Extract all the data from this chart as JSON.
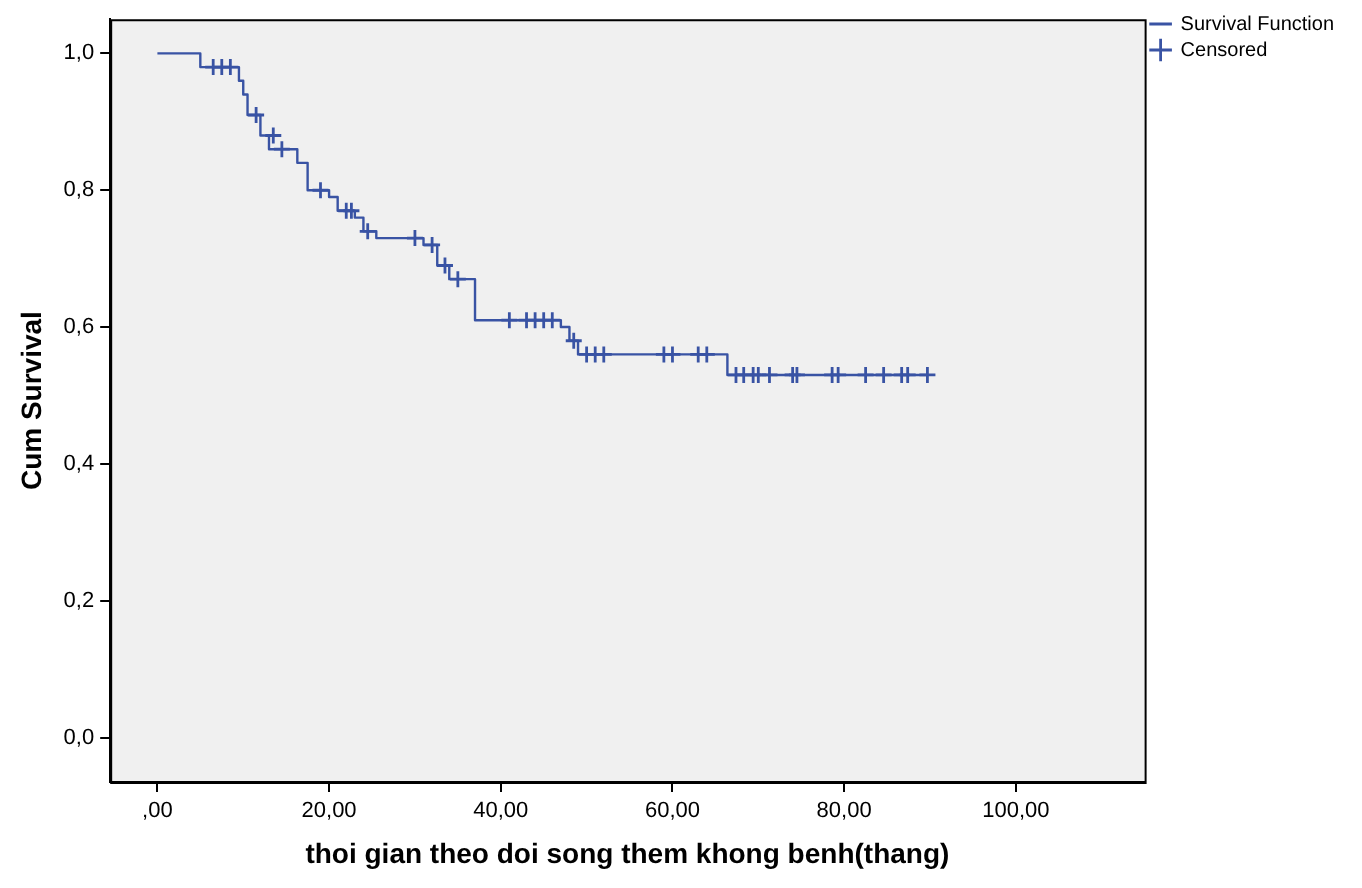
{
  "chart_data": {
    "type": "step",
    "xlabel": "thoi gian theo doi song them khong benh(thang)",
    "ylabel": "Cum Survival",
    "xlim": [
      -5.5,
      115
    ],
    "ylim": [
      -0.065,
      1.05
    ],
    "xticks": [
      {
        "value": 0,
        "label": ",00"
      },
      {
        "value": 20,
        "label": "20,00"
      },
      {
        "value": 40,
        "label": "40,00"
      },
      {
        "value": 60,
        "label": "60,00"
      },
      {
        "value": 80,
        "label": "80,00"
      },
      {
        "value": 100,
        "label": "100,00"
      }
    ],
    "yticks": [
      {
        "value": 0,
        "label": "0,0"
      },
      {
        "value": 0.2,
        "label": "0,2"
      },
      {
        "value": 0.4,
        "label": "0,4"
      },
      {
        "value": 0.6,
        "label": "0,6"
      },
      {
        "value": 0.8,
        "label": "0,8"
      },
      {
        "value": 1,
        "label": "1,0"
      }
    ],
    "grid": false,
    "legend": "top right",
    "series": [
      {
        "name": "Survival Function",
        "color": "#3953a4",
        "x": [
          0,
          5,
          9.5,
          10,
          10.5,
          12,
          13,
          16.3,
          17.5,
          20,
          21,
          23,
          24,
          25.5,
          31,
          32.6,
          34,
          37,
          47,
          48,
          49,
          66.4,
          89.7
        ],
        "values": [
          1,
          0.98,
          0.96,
          0.94,
          0.91,
          0.88,
          0.86,
          0.84,
          0.8,
          0.79,
          0.77,
          0.76,
          0.74,
          0.73,
          0.72,
          0.69,
          0.67,
          0.61,
          0.6,
          0.58,
          0.56,
          0.53,
          0.53
        ]
      },
      {
        "name": "Censored",
        "type": "scatter",
        "marker": "cross",
        "color": "#3953a4",
        "x": [
          6.5,
          7.5,
          8.5,
          11.5,
          13.5,
          14.5,
          19,
          22,
          22.6,
          24.5,
          30,
          32,
          33.5,
          35,
          41,
          43,
          44,
          45,
          46,
          48.5,
          50,
          51,
          52,
          59,
          60,
          63,
          64,
          67.4,
          68.3,
          69.4,
          70,
          71.3,
          74,
          74.5,
          78.6,
          79.3,
          82.5,
          84.6,
          86.7,
          87.4,
          89.7
        ],
        "values": [
          0.98,
          0.98,
          0.98,
          0.91,
          0.88,
          0.86,
          0.8,
          0.77,
          0.77,
          0.74,
          0.73,
          0.72,
          0.69,
          0.67,
          0.61,
          0.61,
          0.61,
          0.61,
          0.61,
          0.58,
          0.56,
          0.56,
          0.56,
          0.56,
          0.56,
          0.56,
          0.56,
          0.53,
          0.53,
          0.53,
          0.53,
          0.53,
          0.53,
          0.53,
          0.53,
          0.53,
          0.53,
          0.53,
          0.53,
          0.53,
          0.53
        ]
      }
    ]
  }
}
